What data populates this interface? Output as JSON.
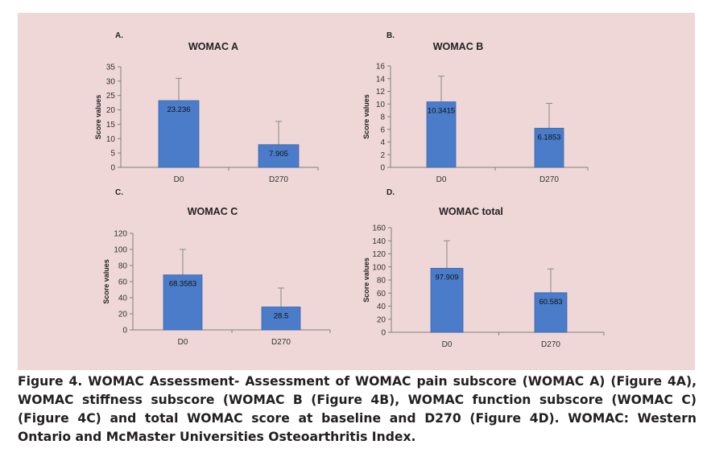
{
  "figure": {
    "caption": "Figure 4. WOMAC Assessment- Assessment of WOMAC pain subscore (WOMAC A) (Figure 4A), WOMAC stiffness subscore (WOMAC B (Figure 4B), WOMAC function subscore (WOMAC C) (Figure 4C) and total WOMAC score at baseline and D270 (Figure 4D). WOMAC: Western Ontario and McMaster Universities Osteoarthritis Index."
  },
  "colors": {
    "panel_bg": "#efd7d7",
    "bar": "#4a7cc9",
    "bar_edge": "#3b66ad",
    "axis": "#7f7f7f",
    "error_bar": "#8a8a8a"
  },
  "chart_data": [
    {
      "panel_label": "A.",
      "type": "bar",
      "title": "WOMAC A",
      "ylabel": "Score values",
      "xlabel": "",
      "categories": [
        "D0",
        "D270"
      ],
      "values": [
        23.236,
        7.905
      ],
      "value_labels": [
        "23.236",
        "7.905"
      ],
      "error_upper": [
        31.0,
        16.0
      ],
      "ylim": [
        0,
        35
      ],
      "yticks": [
        "0",
        "5",
        "10",
        "15",
        "20",
        "25",
        "30",
        "35"
      ]
    },
    {
      "panel_label": "B.",
      "type": "bar",
      "title": "WOMAC B",
      "ylabel": "Score values",
      "xlabel": "",
      "categories": [
        "D0",
        "D270"
      ],
      "values": [
        10.3415,
        6.1853
      ],
      "value_labels": [
        "10.3415",
        "6.1853"
      ],
      "error_upper": [
        14.4,
        10.1
      ],
      "ylim": [
        0,
        16
      ],
      "yticks": [
        "0",
        "2",
        "4",
        "6",
        "8",
        "10",
        "12",
        "14",
        "16"
      ]
    },
    {
      "panel_label": "C.",
      "type": "bar",
      "title": "WOMAC C",
      "ylabel": "Score values",
      "xlabel": "",
      "categories": [
        "D0",
        "D270"
      ],
      "values": [
        68.3583,
        28.5
      ],
      "value_labels": [
        "68.3583",
        "28.5"
      ],
      "error_upper": [
        100,
        52
      ],
      "ylim": [
        0,
        120
      ],
      "yticks": [
        "0",
        "20",
        "40",
        "60",
        "80",
        "100",
        "120"
      ]
    },
    {
      "panel_label": "D.",
      "type": "bar",
      "title": "WOMAC total",
      "ylabel": "Score values",
      "xlabel": "",
      "categories": [
        "D0",
        "D270"
      ],
      "values": [
        97.909,
        60.583
      ],
      "value_labels": [
        "97.909",
        "60.583"
      ],
      "error_upper": [
        140,
        97
      ],
      "ylim": [
        0,
        160
      ],
      "yticks": [
        "0",
        "20",
        "40",
        "60",
        "80",
        "100",
        "120",
        "140",
        "160"
      ]
    }
  ]
}
